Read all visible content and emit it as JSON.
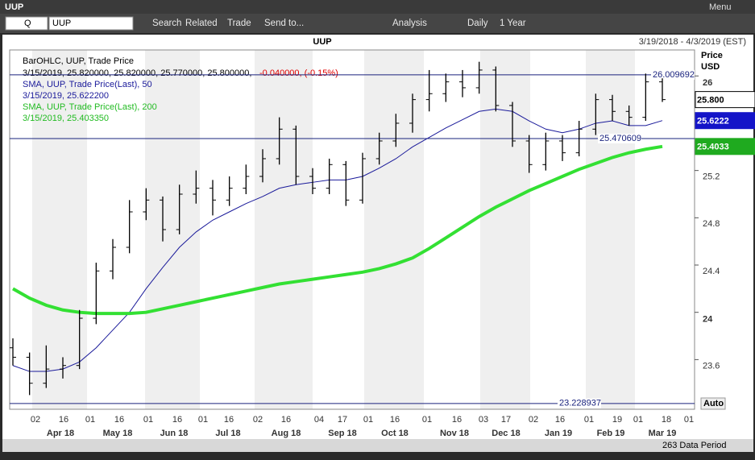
{
  "window": {
    "title": "UUP",
    "menu": "Menu"
  },
  "toolbar": {
    "symbol_type": "Q",
    "symbol": "UUP",
    "items": [
      "Search",
      "Related",
      "Trade",
      "Send to...",
      "Analysis",
      "Daily",
      "1 Year"
    ]
  },
  "chart_data": {
    "type": "ohlc",
    "title": "UUP",
    "date_range": "3/19/2018 - 4/3/2019 (EST)",
    "y_axis_title": "Price",
    "y_axis_unit": "USD",
    "autoscale": "Auto",
    "footer": "263 Data Period",
    "legend": {
      "name": "BarOHLC, UUP, Trade Price",
      "readout": "3/15/2019, 25.820000, 25.820000, 25.770000, 25.800000,",
      "change": "-0.040000, (-0.15%)",
      "change_color": "#e00000"
    },
    "color": "#000000",
    "ylim": [
      23.18,
      26.22
    ],
    "yticks": [
      23.6,
      24,
      24.4,
      24.8,
      25.2,
      26
    ],
    "day_ticks": [
      "02",
      "16",
      "01",
      "16",
      "01",
      "16",
      "01",
      "16",
      "02",
      "16",
      "04",
      "17",
      "01",
      "16",
      "01",
      "16",
      "03",
      "17",
      "02",
      "16",
      "01",
      "19",
      "01",
      "18",
      "01"
    ],
    "month_ticks": [
      "Apr 18",
      "May 18",
      "Jun 18",
      "Jul 18",
      "Aug 18",
      "Sep 18",
      "Oct 18",
      "Nov 18",
      "Dec 18",
      "Jan 19",
      "Feb 19",
      "Mar 19"
    ],
    "levels": [
      26.009692,
      25.470609,
      23.228937
    ],
    "level_color": "#1a237e",
    "price_tags": [
      {
        "value": 25.8,
        "label": "25.800",
        "color": "#000000"
      },
      {
        "value": 25.6222,
        "label": "25.6222",
        "color": "#1414c8"
      },
      {
        "value": 25.4033,
        "label": "25.4033",
        "color": "#1faa1f"
      }
    ],
    "open": [
      23.7,
      23.62,
      23.4,
      23.52,
      23.55,
      23.95,
      24.35,
      24.55,
      24.85,
      24.95,
      24.7,
      25.0,
      25.05,
      24.95,
      25.05,
      25.15,
      25.3,
      25.55,
      25.15,
      25.05,
      25.25,
      24.95,
      25.3,
      25.45,
      25.6,
      25.8,
      25.85,
      25.95,
      25.9,
      26.05,
      25.75,
      25.45,
      25.25,
      25.45,
      25.35,
      25.55,
      25.8,
      25.7,
      25.65,
      25.95
    ],
    "high": [
      23.78,
      23.66,
      23.72,
      23.62,
      24.02,
      24.42,
      24.62,
      24.95,
      25.05,
      24.98,
      25.08,
      25.2,
      25.12,
      25.15,
      25.25,
      25.38,
      25.65,
      25.58,
      25.22,
      25.3,
      25.28,
      25.35,
      25.52,
      25.68,
      25.85,
      26.05,
      26.02,
      26.05,
      26.12,
      26.08,
      25.78,
      25.5,
      25.52,
      25.5,
      25.62,
      25.85,
      25.84,
      25.75,
      26.02,
      25.98
    ],
    "low": [
      23.55,
      23.3,
      23.36,
      23.44,
      23.52,
      23.9,
      24.28,
      24.5,
      24.78,
      24.6,
      24.66,
      24.92,
      24.82,
      24.9,
      25.0,
      25.1,
      25.25,
      25.08,
      25.0,
      25.0,
      24.9,
      24.92,
      25.25,
      25.4,
      25.52,
      25.7,
      25.78,
      25.82,
      25.85,
      25.7,
      25.4,
      25.18,
      25.2,
      25.28,
      25.32,
      25.5,
      25.62,
      25.58,
      25.62,
      25.78
    ],
    "close": [
      23.62,
      23.4,
      23.52,
      23.55,
      23.95,
      24.35,
      24.55,
      24.85,
      24.95,
      24.7,
      25.0,
      25.05,
      24.95,
      25.05,
      25.15,
      25.3,
      25.55,
      25.15,
      25.05,
      25.25,
      24.95,
      25.3,
      25.45,
      25.6,
      25.8,
      25.85,
      25.95,
      25.9,
      26.05,
      25.75,
      25.45,
      25.25,
      25.45,
      25.35,
      25.55,
      25.8,
      25.7,
      25.65,
      25.95,
      25.8
    ],
    "series": [
      {
        "name": "SMA, UUP, Trade Price(Last),  50",
        "readout": "3/15/2019, 25.622200",
        "color": "#1a1a9a",
        "width": 1,
        "values": [
          23.55,
          23.5,
          23.5,
          23.52,
          23.58,
          23.7,
          23.85,
          24.0,
          24.2,
          24.38,
          24.55,
          24.68,
          24.78,
          24.85,
          24.92,
          24.98,
          25.05,
          25.08,
          25.1,
          25.12,
          25.12,
          25.15,
          25.22,
          25.3,
          25.4,
          25.48,
          25.56,
          25.63,
          25.7,
          25.72,
          25.7,
          25.62,
          25.55,
          25.52,
          25.55,
          25.6,
          25.62,
          25.58,
          25.58,
          25.6222
        ]
      },
      {
        "name": "SMA, UUP, Trade Price(Last),  200",
        "readout": "3/15/2019, 25.403350",
        "color": "#33e033",
        "width": 4,
        "values": [
          24.2,
          24.12,
          24.06,
          24.02,
          24.0,
          23.99,
          23.99,
          23.99,
          24.0,
          24.03,
          24.06,
          24.09,
          24.12,
          24.15,
          24.18,
          24.21,
          24.24,
          24.26,
          24.28,
          24.3,
          24.32,
          24.34,
          24.37,
          24.41,
          24.46,
          24.54,
          24.63,
          24.72,
          24.81,
          24.89,
          24.96,
          25.03,
          25.09,
          25.15,
          25.21,
          25.26,
          25.31,
          25.35,
          25.38,
          25.40335
        ]
      }
    ]
  }
}
